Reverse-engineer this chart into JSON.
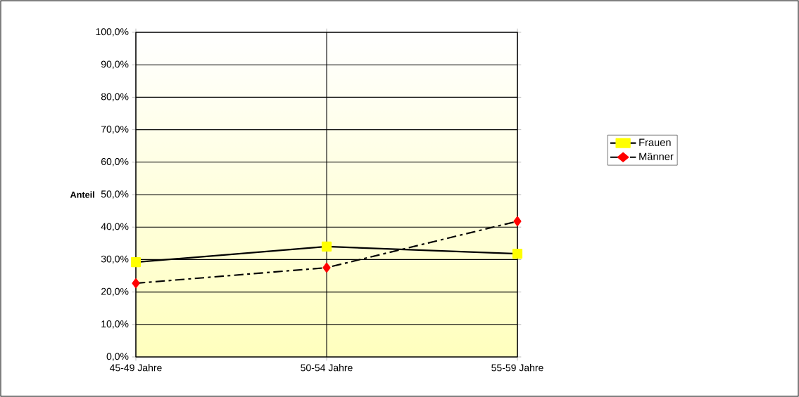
{
  "chart_data": {
    "type": "line",
    "ylabel": "Anteil",
    "categories": [
      "45-49 Jahre",
      "50-54 Jahre",
      "55-59 Jahre"
    ],
    "series": [
      {
        "name": "Frauen",
        "color": "#ffff00",
        "marker": "square",
        "line_style": "solid",
        "values": [
          29.2,
          34.0,
          31.8
        ]
      },
      {
        "name": "Männer",
        "color": "#ff0000",
        "marker": "diamond",
        "line_style": "dashed",
        "values": [
          22.7,
          27.5,
          41.8
        ]
      }
    ],
    "ylim": [
      0,
      100
    ],
    "yticks": [
      {
        "value": 0,
        "label": "0,0%"
      },
      {
        "value": 10,
        "label": "10,0%"
      },
      {
        "value": 20,
        "label": "20,0%"
      },
      {
        "value": 30,
        "label": "30,0%"
      },
      {
        "value": 40,
        "label": "40,0%"
      },
      {
        "value": 50,
        "label": "50,0%"
      },
      {
        "value": 60,
        "label": "60,0%"
      },
      {
        "value": 70,
        "label": "70,0%"
      },
      {
        "value": 80,
        "label": "80,0%"
      },
      {
        "value": 90,
        "label": "90,0%"
      },
      {
        "value": 100,
        "label": "100,0%"
      }
    ],
    "grid": true,
    "legend": "right"
  }
}
